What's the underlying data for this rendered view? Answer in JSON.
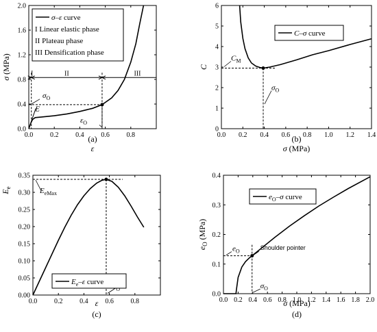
{
  "figure": {
    "panels": [
      "(a)",
      "(b)",
      "(c)",
      "(d)"
    ]
  },
  "chart_data": [
    {
      "id": "a",
      "type": "line",
      "panel_label": "(a)",
      "xlabel": "ε",
      "ylabel": "σ (MPa)",
      "xlim": [
        0.0,
        1.0
      ],
      "ylim": [
        0.0,
        2.0
      ],
      "xticks": [
        0.0,
        0.2,
        0.4,
        0.6,
        0.8
      ],
      "xtick_labels": [
        "0.0",
        "0.2",
        "0.4",
        "0.6",
        "0.8"
      ],
      "yticks": [
        0.0,
        0.4,
        0.8,
        1.2,
        1.6,
        2.0
      ],
      "ytick_labels": [
        "0.0",
        "0.4",
        "0.8",
        "1.2",
        "1.6",
        "2.0"
      ],
      "legend": [
        "σ–ε curve",
        "I Linear elastic phase",
        "II Plateau phase",
        "III Densification phase"
      ],
      "legend_position": "top-left",
      "series": [
        {
          "name": "σ–ε curve",
          "x": [
            0.0,
            0.01,
            0.02,
            0.03,
            0.05,
            0.1,
            0.2,
            0.3,
            0.4,
            0.5,
            0.575,
            0.65,
            0.7,
            0.75,
            0.8,
            0.84,
            0.87,
            0.9
          ],
          "y": [
            0.0,
            0.06,
            0.11,
            0.15,
            0.18,
            0.19,
            0.21,
            0.24,
            0.28,
            0.33,
            0.39,
            0.5,
            0.62,
            0.8,
            1.08,
            1.38,
            1.7,
            2.0
          ]
        }
      ],
      "phase_labels": [
        "I",
        "II",
        "III"
      ],
      "phase_boundaries": [
        0.02,
        0.575
      ],
      "phase_arrow_y": 0.83,
      "point_O": [
        0.575,
        0.39
      ],
      "elastic_line": {
        "x": [
          0.0,
          0.055
        ],
        "y": [
          0.0,
          0.33
        ]
      },
      "annotations": [
        "σO",
        "E",
        "εO"
      ]
    },
    {
      "id": "b",
      "type": "line",
      "panel_label": "(b)",
      "xlabel": "σ (MPa)",
      "ylabel": "C",
      "xlim": [
        0.0,
        1.4
      ],
      "ylim": [
        0,
        6
      ],
      "xticks": [
        0.0,
        0.2,
        0.4,
        0.6,
        0.8,
        1.0,
        1.2,
        1.4
      ],
      "xtick_labels": [
        "0.0",
        "0.2",
        "0.4",
        "0.6",
        "0.8",
        "1.0",
        "1.2",
        "1.4"
      ],
      "yticks": [
        0,
        1,
        2,
        3,
        4,
        5,
        6
      ],
      "ytick_labels": [
        "0",
        "1",
        "2",
        "3",
        "4",
        "5",
        "6"
      ],
      "legend": [
        "C–σ curve"
      ],
      "legend_position": "top-right",
      "series": [
        {
          "name": "C–σ curve",
          "x": [
            0.17,
            0.18,
            0.2,
            0.22,
            0.25,
            0.28,
            0.32,
            0.36,
            0.39,
            0.45,
            0.55,
            0.7,
            0.85,
            1.0,
            1.2,
            1.4
          ],
          "y": [
            6.0,
            5.2,
            4.4,
            3.9,
            3.45,
            3.2,
            3.05,
            2.98,
            2.95,
            3.0,
            3.12,
            3.35,
            3.6,
            3.8,
            4.1,
            4.38
          ]
        }
      ],
      "min_point": [
        0.39,
        2.95
      ],
      "annotations": [
        "CM",
        "σO"
      ]
    },
    {
      "id": "c",
      "type": "line",
      "panel_label": "(c)",
      "xlabel": "ε",
      "ylabel": "Ee",
      "xlim": [
        0.0,
        1.0
      ],
      "ylim": [
        0.0,
        0.35
      ],
      "xticks": [
        0.0,
        0.2,
        0.4,
        0.6,
        0.8
      ],
      "xtick_labels": [
        "0.0",
        "0.2",
        "0.4",
        "0.6",
        "0.8"
      ],
      "yticks": [
        0.0,
        0.05,
        0.1,
        0.15,
        0.2,
        0.25,
        0.3,
        0.35
      ],
      "ytick_labels": [
        "0.00",
        "0.05",
        "0.10",
        "0.15",
        "0.20",
        "0.25",
        "0.30",
        "0.35"
      ],
      "legend": [
        "Ee–ε curve"
      ],
      "legend_position": "bottom-right",
      "series": [
        {
          "name": "Ee–ε curve",
          "x": [
            0.0,
            0.05,
            0.1,
            0.15,
            0.2,
            0.25,
            0.3,
            0.35,
            0.4,
            0.45,
            0.5,
            0.54,
            0.575,
            0.62,
            0.67,
            0.72,
            0.77,
            0.82,
            0.87
          ],
          "y": [
            0.0,
            0.04,
            0.08,
            0.12,
            0.16,
            0.198,
            0.233,
            0.264,
            0.29,
            0.311,
            0.327,
            0.335,
            0.338,
            0.332,
            0.315,
            0.29,
            0.26,
            0.228,
            0.198
          ]
        }
      ],
      "max_point": [
        0.575,
        0.338
      ],
      "annotations": [
        "EeMax",
        "εO"
      ]
    },
    {
      "id": "d",
      "type": "line",
      "panel_label": "(d)",
      "xlabel": "σ (MPa)",
      "ylabel": "eO (MPa)",
      "xlim": [
        0.0,
        2.0
      ],
      "ylim": [
        0.0,
        0.4
      ],
      "xticks": [
        0.0,
        0.2,
        0.4,
        0.6,
        0.8,
        1.0,
        1.2,
        1.4,
        1.6,
        1.8,
        2.0
      ],
      "xtick_labels": [
        "0.0",
        "0.2",
        "0.4",
        "0.6",
        "0.8",
        "1.0",
        "1.2",
        "1.4",
        "1.6",
        "1.8",
        "2.0"
      ],
      "yticks": [
        0.0,
        0.1,
        0.2,
        0.3,
        0.4
      ],
      "ytick_labels": [
        "0.0",
        "0.1",
        "0.2",
        "0.3",
        "0.4"
      ],
      "legend": [
        "eO–σ curve"
      ],
      "legend_position": "top-left",
      "series": [
        {
          "name": "eO–σ curve",
          "x": [
            0.0,
            0.17,
            0.18,
            0.2,
            0.25,
            0.3,
            0.35,
            0.39,
            0.5,
            0.7,
            0.9,
            1.1,
            1.3,
            1.5,
            1.7,
            2.0
          ],
          "y": [
            0.0,
            0.0,
            0.02,
            0.055,
            0.09,
            0.108,
            0.12,
            0.128,
            0.15,
            0.19,
            0.228,
            0.263,
            0.296,
            0.326,
            0.355,
            0.395
          ]
        }
      ],
      "shoulder_point": [
        0.39,
        0.128
      ],
      "annotations": [
        "eO",
        "Shoulder pointer",
        "σO"
      ]
    }
  ]
}
